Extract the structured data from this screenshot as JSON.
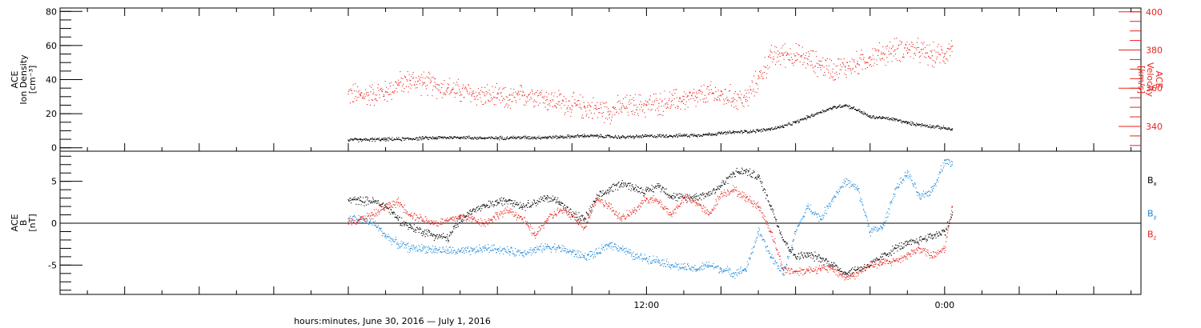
{
  "chart_data": [
    {
      "type": "scatter",
      "panel": "top",
      "ylabel_lines": [
        "ACE",
        "Ion Density",
        "[cm⁻³]"
      ],
      "y2label_lines": [
        "ACE",
        "Velocity",
        "[km/s]"
      ],
      "ylim": [
        -2,
        82
      ],
      "y_ticks": [
        "0",
        "20",
        "40",
        "60",
        "80"
      ],
      "y_tick_values": [
        0,
        20,
        40,
        60,
        80
      ],
      "y2lim": [
        327,
        402
      ],
      "y2_ticks": [
        "340",
        "360",
        "380",
        "400"
      ],
      "y2_tick_values": [
        340,
        360,
        380,
        400
      ],
      "series": [
        {
          "axis": "left",
          "color": "#000000",
          "x": [
            0,
            0.5,
            1,
            1.5,
            2,
            2.5,
            3,
            3.5,
            4,
            4.5,
            5,
            5.5,
            6,
            6.5,
            7,
            7.5,
            8,
            8.5,
            9,
            9.5,
            10,
            10.5,
            11,
            11.5,
            12,
            12.5,
            13,
            13.5,
            14,
            14.5,
            15,
            15.5,
            16,
            16.5,
            17,
            17.5,
            18,
            18.5,
            19,
            19.5,
            20,
            20.5,
            21,
            21.5,
            22,
            22.5,
            23,
            23.5,
            24,
            24.3
          ],
          "values": [
            4.5,
            4.6,
            4.8,
            4.9,
            5.0,
            5.3,
            5.6,
            5.8,
            6.0,
            6.1,
            5.8,
            5.6,
            5.7,
            5.9,
            6.0,
            6.0,
            6.1,
            6.3,
            6.6,
            7.0,
            6.8,
            6.5,
            6.2,
            6.4,
            6.8,
            6.9,
            7.0,
            7.2,
            7.4,
            7.8,
            8.5,
            9.0,
            9.5,
            10.0,
            11.0,
            12.5,
            15.0,
            18.0,
            21.0,
            23.5,
            25.0,
            22.0,
            18.0,
            17.5,
            16.5,
            14.5,
            13.5,
            12.5,
            11.5,
            10.5
          ]
        },
        {
          "axis": "right",
          "color": "#e8231b",
          "x": [
            0,
            0.5,
            1,
            1.5,
            2,
            2.5,
            3,
            3.5,
            4,
            4.5,
            5,
            5.5,
            6,
            6.5,
            7,
            7.5,
            8,
            8.5,
            9,
            9.5,
            10,
            10.5,
            11,
            11.5,
            12,
            12.5,
            13,
            13.5,
            14,
            14.5,
            15,
            15.5,
            16,
            16.5,
            17,
            17.5,
            18,
            18.5,
            19,
            19.5,
            20,
            20.5,
            21,
            21.5,
            22,
            22.5,
            23,
            23.5,
            24,
            24.3
          ],
          "values": [
            357,
            356,
            357,
            358,
            362,
            364,
            363,
            361,
            360,
            358,
            357,
            356,
            355,
            354,
            356,
            357,
            354,
            353,
            351,
            350,
            349,
            348,
            350,
            351,
            351,
            352,
            353,
            354,
            355,
            357,
            356,
            355,
            354,
            365,
            376,
            378,
            377,
            375,
            372,
            370,
            371,
            373,
            376,
            378,
            380,
            381,
            379,
            377,
            378,
            382
          ]
        }
      ]
    },
    {
      "type": "scatter",
      "panel": "bottom",
      "ylabel_lines": [
        "ACE",
        "B",
        "[nT]"
      ],
      "ylim": [
        -8.5,
        8.6
      ],
      "y_ticks": [
        "-5",
        "0",
        "5"
      ],
      "y_tick_values": [
        -5,
        0,
        5
      ],
      "legend": {
        "position": "right",
        "entries": [
          {
            "label": "B",
            "sub": "x",
            "color": "#000000"
          },
          {
            "label": "B",
            "sub": "y",
            "color": "#1a86d8"
          },
          {
            "label": "B",
            "sub": "z",
            "color": "#e8231b"
          }
        ]
      },
      "series": [
        {
          "name": "Bx",
          "color": "#000000",
          "x": [
            0,
            0.5,
            1,
            1.5,
            2,
            2.5,
            3,
            3.5,
            4,
            4.5,
            5,
            5.5,
            6,
            6.5,
            7,
            7.5,
            8,
            8.5,
            9,
            9.5,
            10,
            10.5,
            11,
            11.5,
            12,
            12.5,
            13,
            13.5,
            14,
            14.5,
            15,
            15.5,
            16,
            16.5,
            17,
            17.5,
            18,
            18.5,
            19,
            19.5,
            20,
            20.5,
            21,
            21.5,
            22,
            22.5,
            23,
            23.5,
            24,
            24.3
          ],
          "values": [
            2.8,
            2.7,
            2.6,
            2.0,
            0.5,
            -0.5,
            -1.0,
            -1.5,
            -1.8,
            0.5,
            1.5,
            2.0,
            2.5,
            2.8,
            2.0,
            2.5,
            3.0,
            2.6,
            1.0,
            0.5,
            3.0,
            4.0,
            4.8,
            4.2,
            3.8,
            4.5,
            3.2,
            3.0,
            3.2,
            3.5,
            4.5,
            6.0,
            6.2,
            5.5,
            2.0,
            -2.0,
            -4.0,
            -3.8,
            -4.2,
            -5.0,
            -6.0,
            -5.5,
            -5.0,
            -4.0,
            -3.0,
            -2.5,
            -2.0,
            -1.5,
            -1.0,
            1.0
          ]
        },
        {
          "name": "By",
          "color": "#1a86d8",
          "x": [
            0,
            0.5,
            1,
            1.5,
            2,
            2.5,
            3,
            3.5,
            4,
            4.5,
            5,
            5.5,
            6,
            6.5,
            7,
            7.5,
            8,
            8.5,
            9,
            9.5,
            10,
            10.5,
            11,
            11.5,
            12,
            12.5,
            13,
            13.5,
            14,
            14.5,
            15,
            15.5,
            16,
            16.5,
            17,
            17.5,
            18,
            18.5,
            19,
            19.5,
            20,
            20.5,
            21,
            21.5,
            22,
            22.5,
            23,
            23.5,
            24,
            24.3
          ],
          "values": [
            0.5,
            0.5,
            0.0,
            -1.5,
            -2.5,
            -3.0,
            -3.0,
            -3.2,
            -3.3,
            -3.4,
            -3.3,
            -3.0,
            -3.1,
            -3.4,
            -3.5,
            -3.2,
            -2.8,
            -3.0,
            -3.5,
            -4.0,
            -3.6,
            -2.5,
            -3.0,
            -4.0,
            -4.2,
            -4.5,
            -5.0,
            -5.3,
            -5.5,
            -5.0,
            -5.5,
            -6.0,
            -5.5,
            -1.0,
            -4.0,
            -6.0,
            -1.0,
            2.0,
            0.5,
            3.0,
            5.0,
            4.0,
            -1.0,
            -0.5,
            4.0,
            6.0,
            3.0,
            4.0,
            7.5,
            7.0
          ]
        },
        {
          "name": "Bz",
          "color": "#e8231b",
          "x": [
            0,
            0.5,
            1,
            1.5,
            2,
            2.5,
            3,
            3.5,
            4,
            4.5,
            5,
            5.5,
            6,
            6.5,
            7,
            7.5,
            8,
            8.5,
            9,
            9.5,
            10,
            10.5,
            11,
            11.5,
            12,
            12.5,
            13,
            13.5,
            14,
            14.5,
            15,
            15.5,
            16,
            16.5,
            17,
            17.5,
            18,
            18.5,
            19,
            19.5,
            20,
            20.5,
            21,
            21.5,
            22,
            22.5,
            23,
            23.5,
            24,
            24.3
          ],
          "values": [
            0.2,
            0.5,
            1.0,
            2.0,
            2.5,
            1.0,
            0.5,
            0.0,
            0.3,
            0.8,
            0.5,
            0.0,
            1.0,
            1.5,
            0.5,
            -1.5,
            0.5,
            1.5,
            1.0,
            -0.5,
            3.0,
            2.0,
            0.5,
            1.5,
            3.0,
            2.5,
            1.0,
            3.0,
            2.5,
            1.0,
            3.5,
            4.0,
            3.0,
            2.0,
            -1.0,
            -5.5,
            -5.8,
            -5.6,
            -5.4,
            -5.5,
            -6.5,
            -6.0,
            -5.0,
            -4.8,
            -4.5,
            -3.8,
            -3.0,
            -4.0,
            -3.0,
            2.0
          ]
        }
      ]
    }
  ],
  "x_axis": {
    "xlim": [
      -11.6,
      31.9
    ],
    "major_tick_values": [
      -9,
      -6,
      -3,
      0,
      3,
      6,
      9,
      12,
      15,
      18,
      21,
      24,
      27,
      30
    ],
    "minor_tick_values": [
      -10.5,
      -7.5,
      -4.5,
      -1.5,
      1.5,
      4.5,
      7.5,
      10.5,
      13.5,
      16.5,
      19.5,
      22.5,
      25.5,
      28.5,
      31.5
    ],
    "tick_labels": [
      {
        "x": 12,
        "text": "12:00"
      },
      {
        "x": 24,
        "text": "0:00"
      }
    ],
    "xlabel": "hours:minutes, June 30, 2016 — July  1, 2016"
  }
}
